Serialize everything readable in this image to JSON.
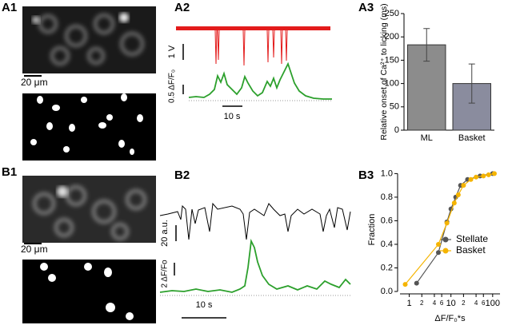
{
  "panel_labels": [
    "A1",
    "A2",
    "A3",
    "B1",
    "B2",
    "B3"
  ],
  "scale_labels": {
    "a1_scale": "20 μm",
    "a2_voltage": "1 V",
    "a2_fluor": "0.5 ΔF/F₀",
    "a2_time": "10 s",
    "b1_scale": "20 μm",
    "b2_au": "20 a.u.",
    "b2_fluor": "2 ΔF/Fo",
    "b2_time": "10 s"
  },
  "chart_data": [
    {
      "type": "bar",
      "y_label": "Relative onset of Ca²⁺ to licking (ms)",
      "categories": [
        "ML",
        "Basket"
      ],
      "values": [
        183,
        100
      ],
      "errors": [
        35,
        42
      ],
      "colors": [
        "#8c8c8c",
        "#8a8c9e"
      ],
      "ylim": [
        0,
        250
      ],
      "yticks": [
        0,
        50,
        100,
        150,
        200,
        250
      ]
    },
    {
      "type": "line",
      "x_label": "ΔF/F₀*s",
      "y_label": "Fraction",
      "xscale": "log",
      "legend": "lower-right",
      "xlim": [
        0.6,
        150
      ],
      "ylim": [
        0,
        1.05
      ],
      "xticks": [
        1,
        2,
        4,
        6,
        10,
        {
          "value": 20,
          "label": "2"
        },
        {
          "value": 40,
          "label": "4"
        },
        {
          "value": 60,
          "label": "6"
        },
        100
      ],
      "yticks": [
        {
          "value": 0,
          "label": "0.0"
        },
        {
          "value": 0.2,
          "label": "0.2"
        },
        {
          "value": 0.4,
          "label": "0.4"
        },
        {
          "value": 0.6,
          "label": "0.6"
        },
        {
          "value": 0.8,
          "label": "0.8"
        },
        {
          "value": 1,
          "label": "1.0"
        }
      ],
      "series": [
        {
          "name": "Stellate",
          "color": "#555555",
          "x": [
            1.5,
            5,
            8,
            10,
            13,
            17,
            25,
            50,
            100
          ],
          "values": [
            0.07,
            0.33,
            0.59,
            0.7,
            0.8,
            0.9,
            0.95,
            0.98,
            1.0
          ]
        },
        {
          "name": "Basket",
          "color": "#f5b400",
          "x": [
            0.8,
            5,
            8,
            12,
            15,
            20,
            30,
            40,
            60,
            80,
            110
          ],
          "values": [
            0.06,
            0.4,
            0.58,
            0.75,
            0.82,
            0.9,
            0.95,
            0.97,
            0.98,
            0.99,
            1.0
          ]
        }
      ]
    }
  ]
}
